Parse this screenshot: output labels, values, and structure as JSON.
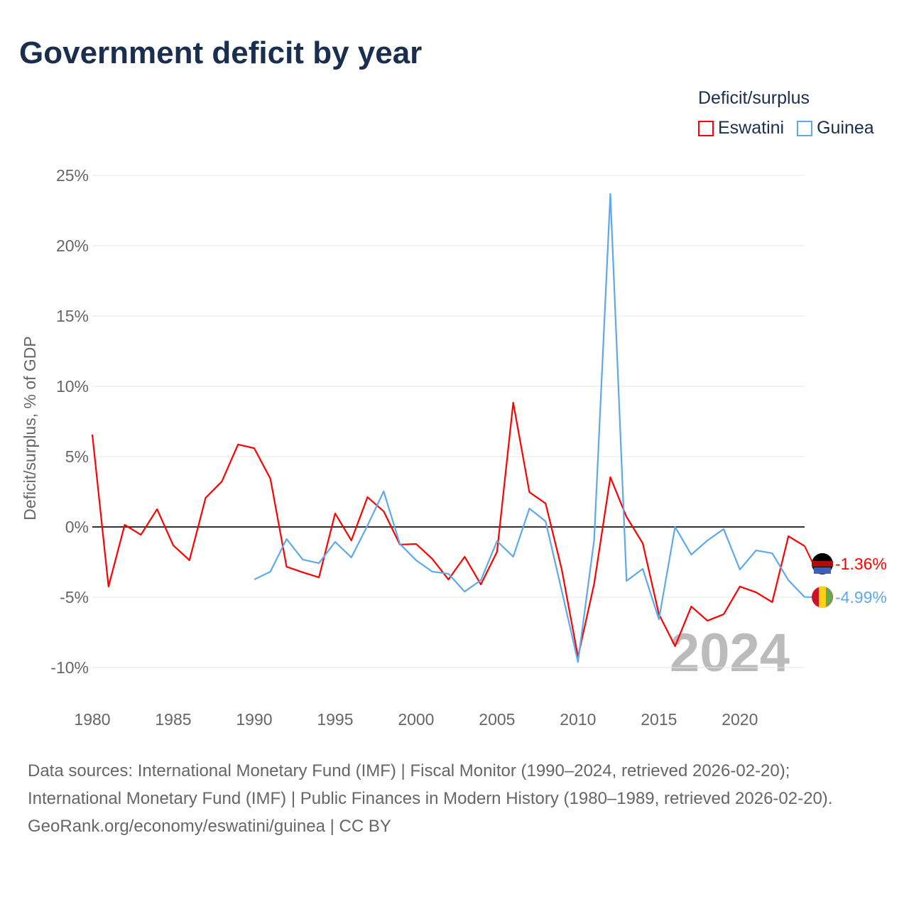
{
  "title": "Government deficit by year",
  "legend_title": "Deficit/surplus",
  "year_watermark": "2024",
  "source_lines": [
    "Data sources: International Monetary Fund (IMF) | Fiscal Monitor (1990–2024, retrieved 2026-02-20); International Monetary Fund (IMF) | Public Finances in Modern History (1980–1989, retrieved 2026-02-20).",
    "GeoRank.org/economy/eswatini/guinea | CC BY"
  ],
  "chart_data": {
    "type": "line",
    "title": "Government deficit by year",
    "ylabel": "Deficit/surplus, % of GDP",
    "xlabel": "",
    "xlim": [
      1980,
      2024
    ],
    "ylim": [
      -10,
      25
    ],
    "xticks": [
      1980,
      1985,
      1990,
      1995,
      2000,
      2005,
      2010,
      2015,
      2020
    ],
    "yticks": [
      -10,
      -5,
      0,
      5,
      10,
      15,
      20,
      25
    ],
    "ytick_labels": [
      "-10%",
      "-5%",
      "0%",
      "5%",
      "10%",
      "15%",
      "20%",
      "25%"
    ],
    "grid": true,
    "legend_position": "top-right",
    "series": [
      {
        "name": "Eswatini",
        "color": "#ff0000",
        "end_label": "-1.36%",
        "start": 1980,
        "values": [
          6.57,
          -4.24,
          0.15,
          -0.56,
          1.26,
          -1.31,
          -2.37,
          2.07,
          3.23,
          5.86,
          5.6,
          3.43,
          -2.83,
          -3.23,
          -3.59,
          0.96,
          -0.96,
          2.12,
          1.11,
          -1.26,
          -1.21,
          -2.27,
          -3.74,
          -2.12,
          -4.09,
          -1.77,
          8.84,
          2.47,
          1.67,
          -3.03,
          -9.24,
          -4.04,
          3.54,
          0.71,
          -1.16,
          -6.21,
          -8.48,
          -5.66,
          -6.67,
          -6.21,
          -4.24,
          -4.65,
          -5.35,
          -0.66,
          -1.36
        ]
      },
      {
        "name": "Guinea",
        "color": "#5ea8ec",
        "end_label": "-4.99%",
        "start": 1990,
        "values": [
          -3.74,
          -3.18,
          -0.86,
          -2.32,
          -2.58,
          -1.06,
          -2.17,
          0.1,
          2.53,
          -1.21,
          -2.37,
          -3.18,
          -3.33,
          -4.6,
          -3.79,
          -1.01,
          -2.12,
          1.31,
          0.4,
          -4.55,
          -9.6,
          -0.91,
          23.69,
          -3.84,
          -2.98,
          -6.57,
          0,
          -1.97,
          -0.96,
          -0.15,
          -3.03,
          -1.67,
          -1.87,
          -3.79,
          -4.99
        ]
      }
    ]
  }
}
